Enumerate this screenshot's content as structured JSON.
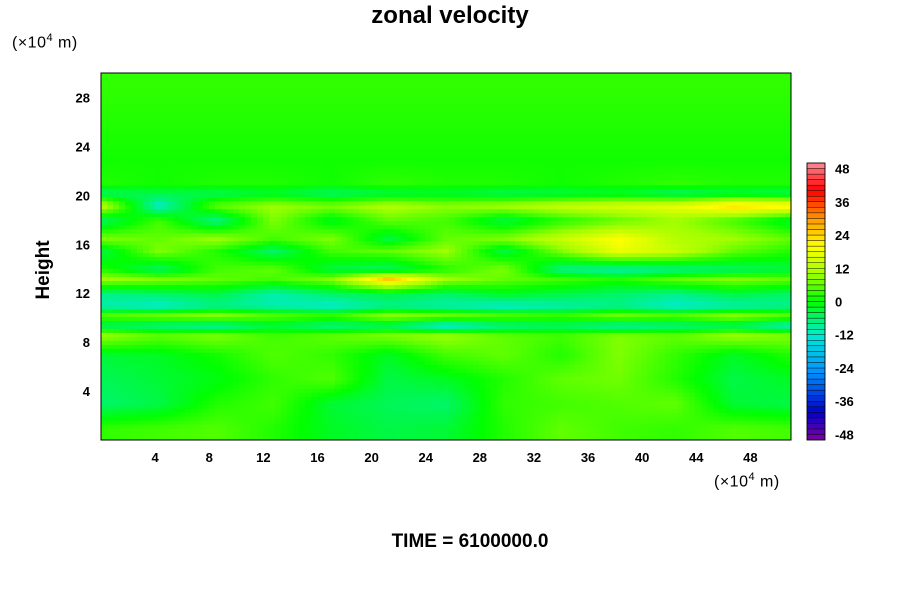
{
  "chart_data": {
    "type": "heatmap",
    "title": "zonal velocity",
    "xlabel": "",
    "ylabel": "Height",
    "x_unit": {
      "pre": "(×10",
      "exp": "4",
      "post": " m)"
    },
    "y_unit": {
      "pre": "(×10",
      "exp": "4",
      "post": " m)"
    },
    "x_ticks": [
      4,
      8,
      12,
      16,
      20,
      24,
      28,
      32,
      36,
      40,
      44,
      48
    ],
    "y_ticks": [
      4,
      8,
      12,
      16,
      20,
      24,
      28
    ],
    "xlim": [
      0,
      51
    ],
    "ylim": [
      0,
      30
    ],
    "colorbar": {
      "ticks": [
        48,
        36,
        24,
        12,
        0,
        -12,
        -24,
        -36,
        -48
      ],
      "range": [
        -50,
        50
      ]
    },
    "footer": "TIME = 6100000.0",
    "field": [
      {
        "y": 29.0,
        "vals": [
          3,
          3,
          3,
          3,
          3,
          3,
          3,
          3,
          3,
          3,
          3,
          3,
          3
        ]
      },
      {
        "y": 26.0,
        "vals": [
          2,
          2,
          2,
          2,
          2,
          2,
          2,
          2,
          2,
          2,
          2,
          2,
          2
        ]
      },
      {
        "y": 23.0,
        "vals": [
          1,
          1,
          1,
          1,
          1,
          1,
          1,
          1,
          1,
          1,
          1,
          1,
          1
        ]
      },
      {
        "y": 21.0,
        "vals": [
          2,
          1,
          2,
          2,
          1,
          3,
          2,
          2,
          1,
          2,
          3,
          2,
          2
        ]
      },
      {
        "y": 20.2,
        "vals": [
          -6,
          -4,
          -5,
          -3,
          -6,
          -4,
          -3,
          -5,
          -4,
          -3,
          -6,
          -4,
          -5
        ]
      },
      {
        "y": 19.2,
        "vals": [
          14,
          -12,
          6,
          10,
          8,
          12,
          9,
          11,
          14,
          16,
          18,
          24,
          22
        ]
      },
      {
        "y": 18.0,
        "vals": [
          -6,
          4,
          -8,
          8,
          -2,
          6,
          4,
          -4,
          2,
          6,
          10,
          4,
          -3
        ]
      },
      {
        "y": 16.5,
        "vals": [
          8,
          6,
          10,
          4,
          8,
          -4,
          6,
          8,
          14,
          20,
          12,
          10,
          6
        ]
      },
      {
        "y": 15.5,
        "vals": [
          -4,
          8,
          2,
          -6,
          4,
          6,
          10,
          -4,
          8,
          18,
          14,
          6,
          2
        ]
      },
      {
        "y": 14.0,
        "vals": [
          2,
          -6,
          4,
          6,
          -4,
          -6,
          2,
          8,
          -8,
          -10,
          -8,
          -6,
          -4
        ]
      },
      {
        "y": 13.2,
        "vals": [
          10,
          8,
          6,
          4,
          8,
          26,
          10,
          6,
          4,
          2,
          6,
          8,
          6
        ]
      },
      {
        "y": 12.0,
        "vals": [
          -8,
          -6,
          -4,
          -10,
          -6,
          -4,
          -6,
          -2,
          -4,
          -6,
          -8,
          -4,
          -6
        ]
      },
      {
        "y": 11.0,
        "vals": [
          -10,
          -12,
          -8,
          -10,
          -12,
          -8,
          -10,
          -12,
          -10,
          -8,
          -12,
          -10,
          -8
        ]
      },
      {
        "y": 10.2,
        "vals": [
          6,
          8,
          10,
          6,
          4,
          10,
          8,
          6,
          4,
          8,
          6,
          10,
          6
        ]
      },
      {
        "y": 9.4,
        "vals": [
          -6,
          -8,
          -10,
          -4,
          -8,
          -6,
          -14,
          -8,
          -6,
          -10,
          -8,
          -6,
          -12
        ]
      },
      {
        "y": 8.6,
        "vals": [
          10,
          6,
          8,
          4,
          6,
          8,
          10,
          6,
          4,
          8,
          6,
          10,
          8
        ]
      },
      {
        "y": 7.0,
        "vals": [
          -3,
          -2,
          1,
          5,
          3,
          -2,
          4,
          6,
          2,
          8,
          3,
          -2,
          2
        ]
      },
      {
        "y": 5.0,
        "vals": [
          -5,
          -3,
          -1,
          3,
          5,
          -4,
          -2,
          2,
          6,
          7,
          2,
          -4,
          -2
        ]
      },
      {
        "y": 3.0,
        "vals": [
          -6,
          -4,
          2,
          4,
          -3,
          -5,
          -6,
          3,
          4,
          5,
          6,
          -3,
          -4
        ]
      },
      {
        "y": 1.0,
        "vals": [
          3,
          4,
          5,
          2,
          -2,
          -4,
          -3,
          2,
          6,
          4,
          3,
          5,
          4
        ]
      }
    ]
  }
}
